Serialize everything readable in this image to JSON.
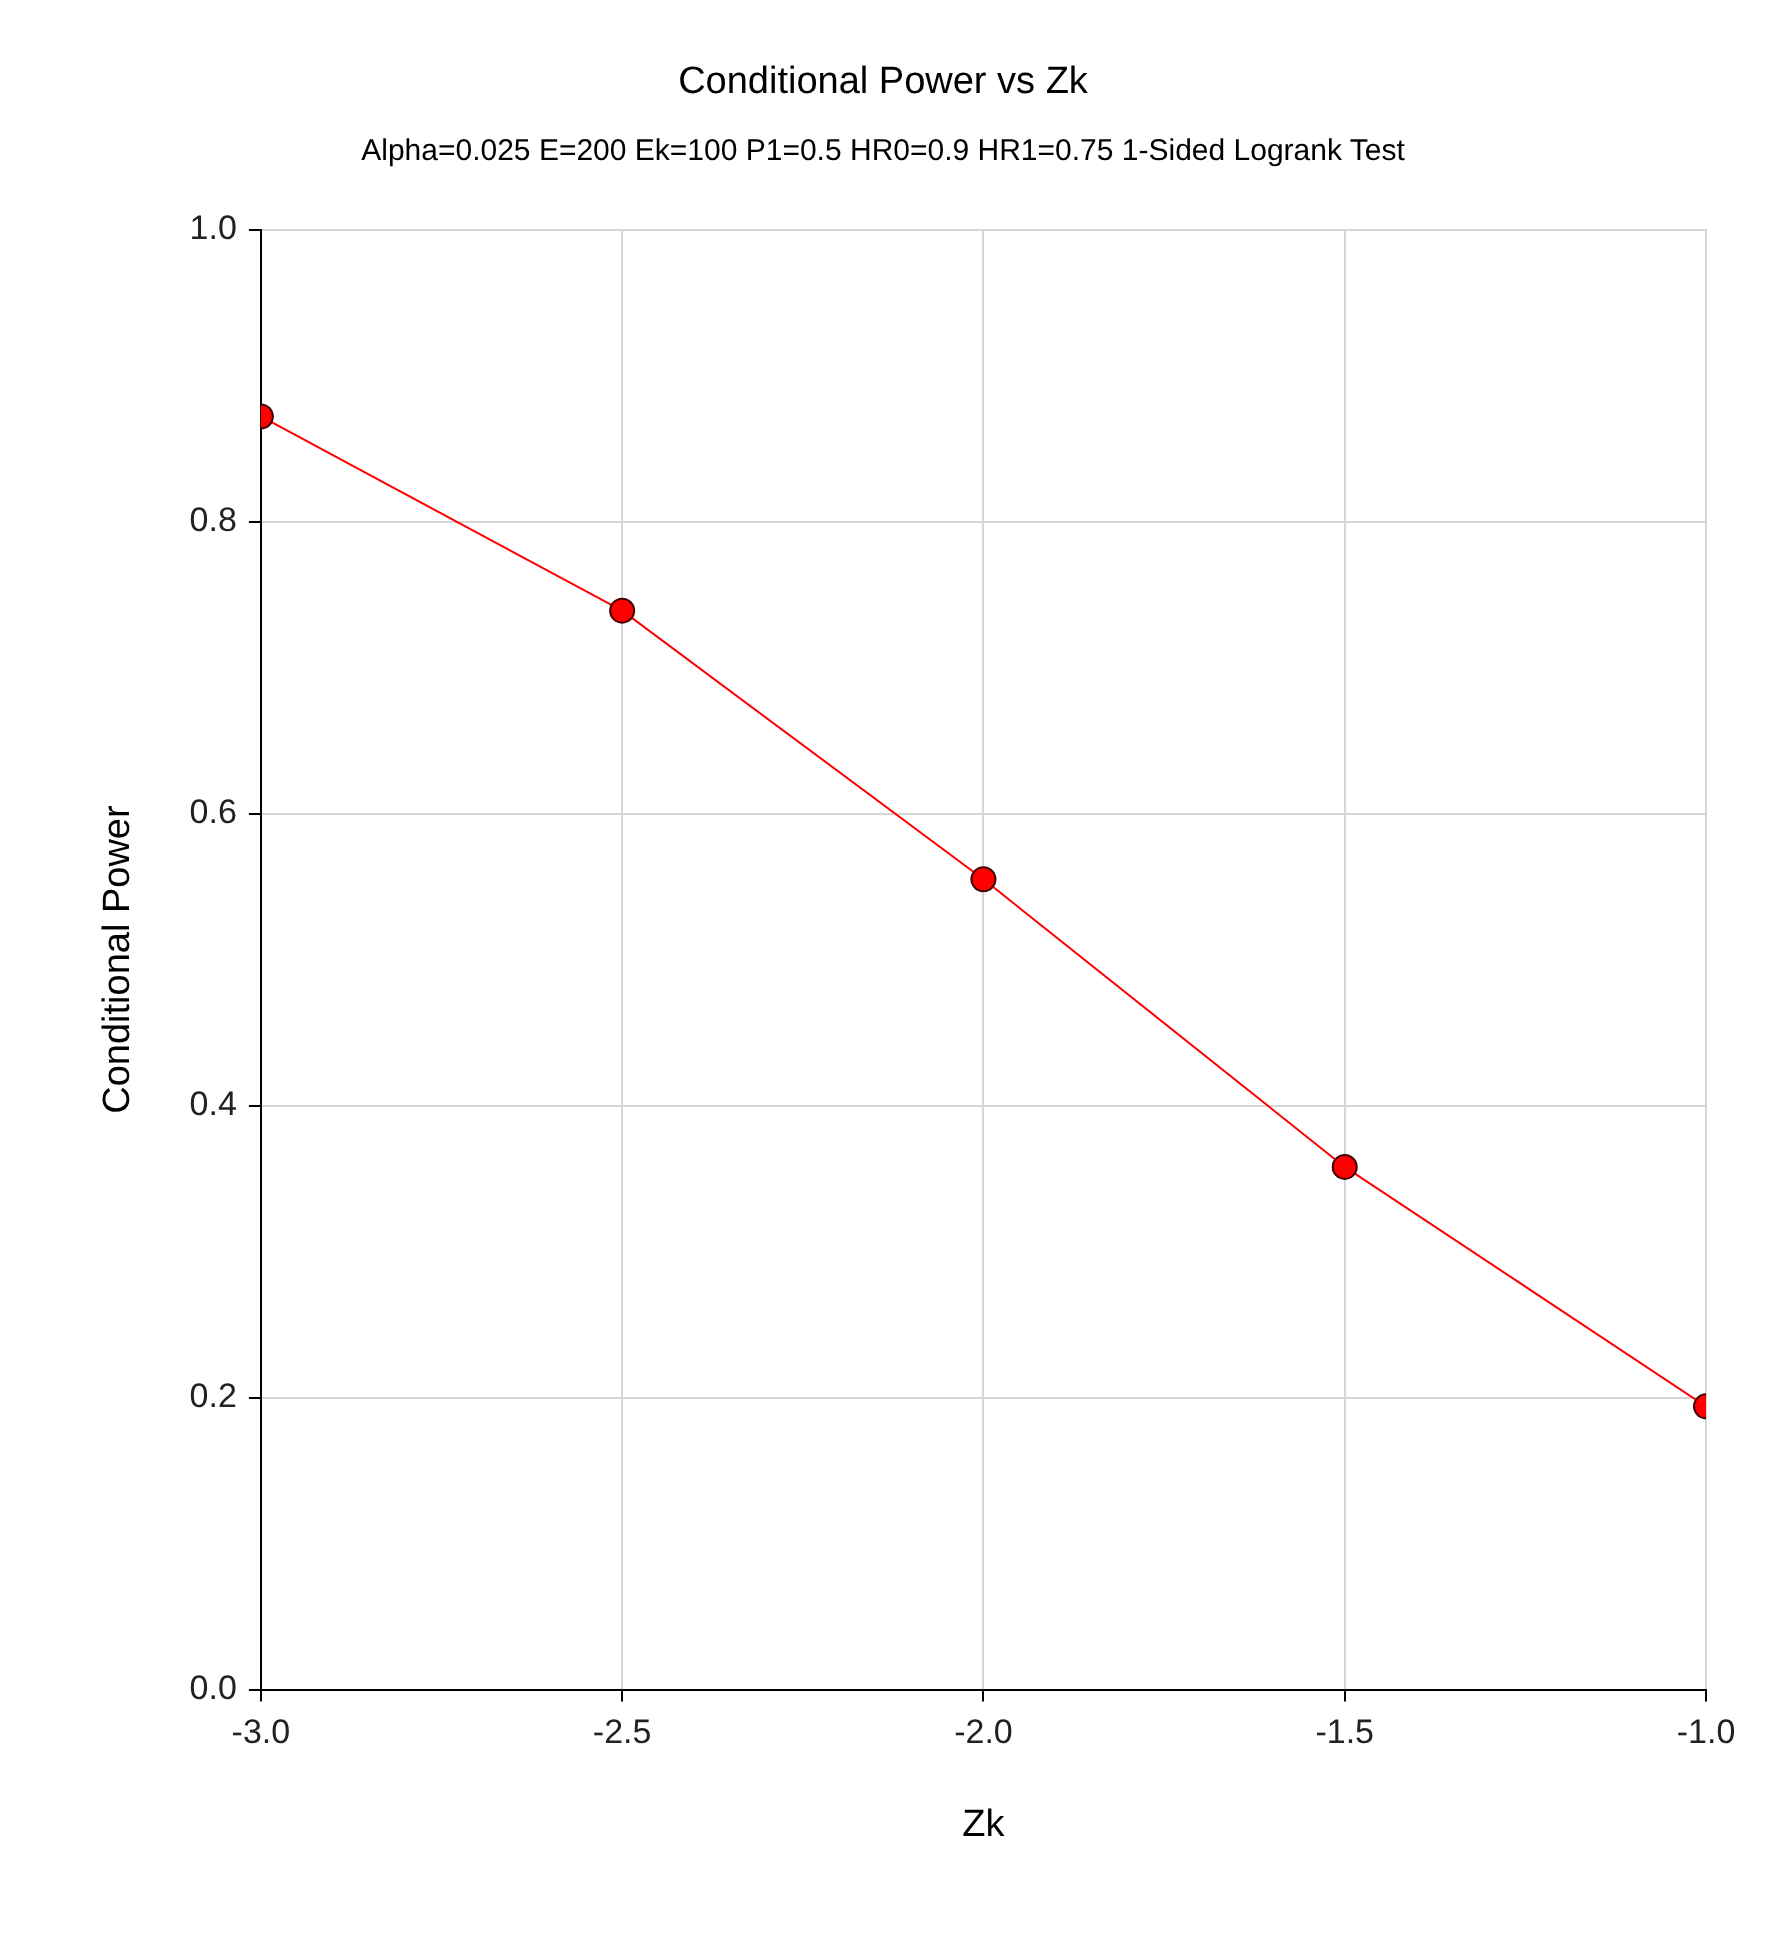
{
  "chart_data": {
    "type": "line",
    "title": "Conditional Power vs Zk",
    "subtitle": "Alpha=0.025 E=200 Ek=100 P1=0.5 HR0=0.9 HR1=0.75 1-Sided Logrank Test",
    "xlabel": "Zk",
    "ylabel": "Conditional Power",
    "x": [
      -3.0,
      -2.5,
      -2.0,
      -1.5,
      -1.0
    ],
    "series": [
      {
        "color": "#ff0000",
        "values": [
          0.872,
          0.739,
          0.555,
          0.358,
          0.194
        ]
      }
    ],
    "xlim": [
      -3.0,
      -1.0
    ],
    "xticks": [
      {
        "value": -3,
        "label": "-3.0"
      },
      {
        "value": -2.5,
        "label": "-2.5"
      },
      {
        "value": -2,
        "label": "-2.0"
      },
      {
        "value": -1.5,
        "label": "-1.5"
      },
      {
        "value": -1,
        "label": "-1.0"
      }
    ],
    "ylim": [
      0,
      1
    ],
    "yticks": [
      {
        "value": 0,
        "label": "0.0"
      },
      {
        "value": 0.2,
        "label": "0.2"
      },
      {
        "value": 0.4,
        "label": "0.4"
      },
      {
        "value": 0.6,
        "label": "0.6"
      },
      {
        "value": 0.8,
        "label": "0.8"
      },
      {
        "value": 1,
        "label": "1.0"
      }
    ],
    "grid": true,
    "marker": "circle",
    "line_style": "solid",
    "legend": false
  }
}
